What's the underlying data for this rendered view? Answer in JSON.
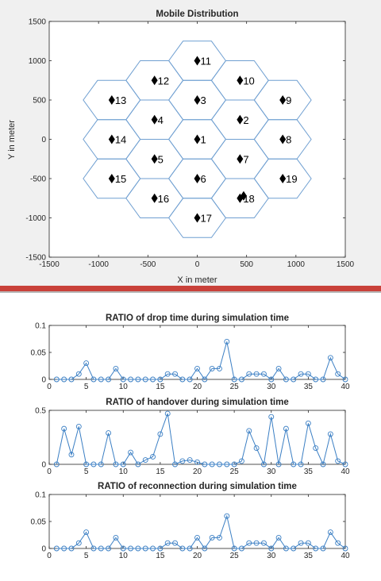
{
  "chart_data": [
    {
      "type": "scatter",
      "title": "Mobile Distribution",
      "xlabel": "X in meter",
      "ylabel": "Y in meter",
      "xlim": [
        -1500,
        1500
      ],
      "ylim": [
        -1500,
        1500
      ],
      "xticks": [
        -1500,
        -1000,
        -500,
        0,
        500,
        1000,
        1500
      ],
      "yticks": [
        -1500,
        -1000,
        -500,
        0,
        500,
        1000,
        1500
      ],
      "hex_color": "#6f9fd1",
      "marker_color": "#000000",
      "cells": [
        {
          "label": "1",
          "x": 0,
          "y": 0
        },
        {
          "label": "2",
          "x": 433,
          "y": 250
        },
        {
          "label": "3",
          "x": 0,
          "y": 500
        },
        {
          "label": "4",
          "x": -433,
          "y": 250
        },
        {
          "label": "5",
          "x": -433,
          "y": -250
        },
        {
          "label": "6",
          "x": 0,
          "y": -500
        },
        {
          "label": "7",
          "x": 433,
          "y": -250
        },
        {
          "label": "8",
          "x": 866,
          "y": 0
        },
        {
          "label": "9",
          "x": 866,
          "y": 500
        },
        {
          "label": "10",
          "x": 433,
          "y": 750
        },
        {
          "label": "11",
          "x": 0,
          "y": 1000
        },
        {
          "label": "12",
          "x": -433,
          "y": 750
        },
        {
          "label": "13",
          "x": -866,
          "y": 500
        },
        {
          "label": "14",
          "x": -866,
          "y": 0
        },
        {
          "label": "15",
          "x": -866,
          "y": -500
        },
        {
          "label": "16",
          "x": -433,
          "y": -750
        },
        {
          "label": "17",
          "x": 0,
          "y": -1000
        },
        {
          "label": "18",
          "x": 433,
          "y": -750
        },
        {
          "label": "19",
          "x": 866,
          "y": -500
        }
      ],
      "mobiles": [
        {
          "x": 0,
          "y": 1000
        },
        {
          "x": -433,
          "y": 750
        },
        {
          "x": 433,
          "y": 750
        },
        {
          "x": -866,
          "y": 500
        },
        {
          "x": 0,
          "y": 500
        },
        {
          "x": 866,
          "y": 500
        },
        {
          "x": -433,
          "y": 250
        },
        {
          "x": 433,
          "y": 250
        },
        {
          "x": -866,
          "y": 0
        },
        {
          "x": 0,
          "y": 0
        },
        {
          "x": 866,
          "y": 0
        },
        {
          "x": -433,
          "y": -250
        },
        {
          "x": 433,
          "y": -250
        },
        {
          "x": -866,
          "y": -500
        },
        {
          "x": 0,
          "y": -500
        },
        {
          "x": 866,
          "y": -500
        },
        {
          "x": -433,
          "y": -750
        },
        {
          "x": 433,
          "y": -750
        },
        {
          "x": 470,
          "y": -720
        },
        {
          "x": 0,
          "y": -1000
        }
      ]
    },
    {
      "type": "line",
      "title": "RATIO of drop time during simulation time",
      "xlim": [
        0,
        40
      ],
      "ylim": [
        0,
        0.1
      ],
      "xticks": [
        0,
        5,
        10,
        15,
        20,
        25,
        30,
        35,
        40
      ],
      "yticks": [
        0,
        0.05,
        0.1
      ],
      "color": "#3b7fc4",
      "x": [
        1,
        2,
        3,
        4,
        5,
        6,
        7,
        8,
        9,
        10,
        11,
        12,
        13,
        14,
        15,
        16,
        17,
        18,
        19,
        20,
        21,
        22,
        23,
        24,
        25,
        26,
        27,
        28,
        29,
        30,
        31,
        32,
        33,
        34,
        35,
        36,
        37,
        38,
        39,
        40
      ],
      "y": [
        0,
        0,
        0,
        0.01,
        0.03,
        0,
        0,
        0,
        0.02,
        0,
        0,
        0,
        0,
        0,
        0,
        0.01,
        0.01,
        0,
        0,
        0.02,
        0,
        0.02,
        0.02,
        0.07,
        0,
        0,
        0.01,
        0.01,
        0.01,
        0,
        0.02,
        0,
        0,
        0.01,
        0.01,
        0,
        0,
        0.04,
        0.01,
        0
      ]
    },
    {
      "type": "line",
      "title": "RATIO of handover during simulation time",
      "xlim": [
        0,
        40
      ],
      "ylim": [
        0,
        0.5
      ],
      "xticks": [
        0,
        5,
        10,
        15,
        20,
        25,
        30,
        35,
        40
      ],
      "yticks": [
        0,
        0.5
      ],
      "color": "#3b7fc4",
      "x": [
        1,
        2,
        3,
        4,
        5,
        6,
        7,
        8,
        9,
        10,
        11,
        12,
        13,
        14,
        15,
        16,
        17,
        18,
        19,
        20,
        21,
        22,
        23,
        24,
        25,
        26,
        27,
        28,
        29,
        30,
        31,
        32,
        33,
        34,
        35,
        36,
        37,
        38,
        39,
        40
      ],
      "y": [
        0,
        0.33,
        0.09,
        0.35,
        0,
        0,
        0,
        0.29,
        0,
        0,
        0.11,
        0,
        0.04,
        0.07,
        0.28,
        0.47,
        0,
        0.03,
        0.04,
        0.02,
        0,
        0,
        0,
        0,
        0,
        0.03,
        0.31,
        0.15,
        0,
        0.44,
        0,
        0.33,
        0,
        0,
        0.38,
        0.15,
        0,
        0.28,
        0.03,
        0
      ]
    },
    {
      "type": "line",
      "title": "RATIO of reconnection during simulation time",
      "xlim": [
        0,
        40
      ],
      "ylim": [
        0,
        0.1
      ],
      "xticks": [
        0,
        5,
        10,
        15,
        20,
        25,
        30,
        35,
        40
      ],
      "yticks": [
        0,
        0.05,
        0.1
      ],
      "color": "#3b7fc4",
      "x": [
        1,
        2,
        3,
        4,
        5,
        6,
        7,
        8,
        9,
        10,
        11,
        12,
        13,
        14,
        15,
        16,
        17,
        18,
        19,
        20,
        21,
        22,
        23,
        24,
        25,
        26,
        27,
        28,
        29,
        30,
        31,
        32,
        33,
        34,
        35,
        36,
        37,
        38,
        39,
        40
      ],
      "y": [
        0,
        0,
        0,
        0.01,
        0.03,
        0,
        0,
        0,
        0.02,
        0,
        0,
        0,
        0,
        0,
        0,
        0.01,
        0.01,
        0,
        0,
        0.02,
        0,
        0.02,
        0.02,
        0.06,
        0,
        0,
        0.01,
        0.01,
        0.01,
        0,
        0.02,
        0,
        0,
        0.01,
        0.01,
        0,
        0,
        0.03,
        0.01,
        0
      ]
    }
  ]
}
